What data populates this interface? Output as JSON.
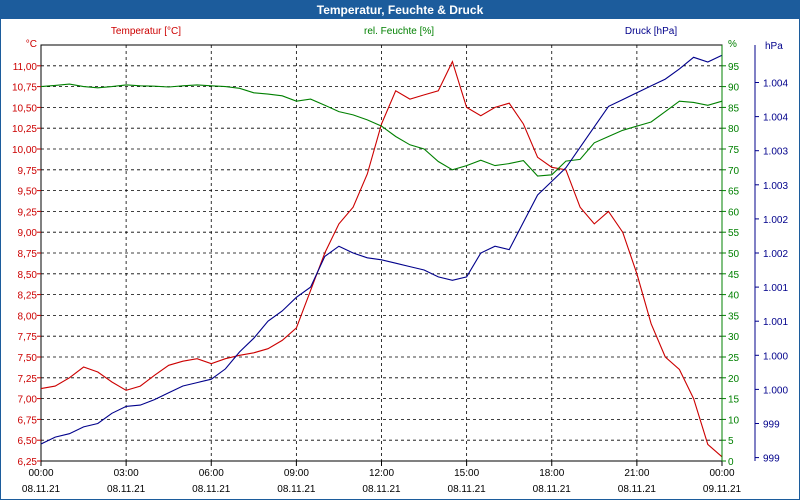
{
  "chart_data": {
    "type": "line",
    "title": "Temperatur, Feuchte & Druck",
    "axes": {
      "temperature": {
        "label": "Temperatur [°C]",
        "unit_label": "°C",
        "color": "#cc0000",
        "ylim": [
          6.25,
          11.25
        ],
        "ticks": [
          "6,25",
          "6,50",
          "6,75",
          "7,00",
          "7,25",
          "7,50",
          "7,75",
          "8,00",
          "8,25",
          "8,50",
          "8,75",
          "9,00",
          "9,25",
          "9,50",
          "9,75",
          "10,00",
          "10,25",
          "10,50",
          "10,75",
          "11,00"
        ]
      },
      "humidity": {
        "label": "rel. Feuchte [%]",
        "unit_label": "%",
        "color": "#008000",
        "ylim": [
          0,
          100
        ],
        "ticks": [
          "0",
          "5",
          "10",
          "15",
          "20",
          "25",
          "30",
          "35",
          "40",
          "45",
          "50",
          "55",
          "60",
          "65",
          "70",
          "75",
          "80",
          "85",
          "90",
          "95"
        ]
      },
      "pressure": {
        "label": "Druck [hPa]",
        "unit_label": "hPa",
        "color": "#00008b",
        "ylim": [
          998.8,
          1004.9
        ],
        "ticks": [
          "999",
          "999",
          "1.000",
          "1.000",
          "1.001",
          "1.001",
          "1.002",
          "1.002",
          "1.003",
          "1.003",
          "1.004",
          "1.004"
        ]
      }
    },
    "x_ticks": [
      {
        "time": "00:00",
        "date": "08.11.21"
      },
      {
        "time": "03:00",
        "date": "08.11.21"
      },
      {
        "time": "06:00",
        "date": "08.11.21"
      },
      {
        "time": "09:00",
        "date": "08.11.21"
      },
      {
        "time": "12:00",
        "date": "08.11.21"
      },
      {
        "time": "15:00",
        "date": "08.11.21"
      },
      {
        "time": "18:00",
        "date": "08.11.21"
      },
      {
        "time": "21:00",
        "date": "08.11.21"
      },
      {
        "time": "00:00",
        "date": "09.11.21"
      }
    ],
    "xlim_hours": [
      0,
      24
    ],
    "series": [
      {
        "name": "Temperatur [°C]",
        "axis": "temperature",
        "x": [
          0,
          0.5,
          1,
          1.5,
          2,
          2.5,
          3,
          3.5,
          4,
          4.5,
          5,
          5.5,
          6,
          6.5,
          7,
          7.5,
          8,
          8.5,
          9,
          9.5,
          10,
          10.5,
          11,
          11.5,
          12,
          12.5,
          13,
          13.5,
          14,
          14.5,
          15,
          15.5,
          16,
          16.5,
          17,
          17.5,
          18,
          18.5,
          19,
          19.5,
          20,
          20.5,
          21,
          21.5,
          22,
          22.5,
          23,
          23.5,
          24
        ],
        "values": [
          7.12,
          7.15,
          7.25,
          7.38,
          7.32,
          7.2,
          7.1,
          7.15,
          7.28,
          7.4,
          7.45,
          7.48,
          7.42,
          7.48,
          7.52,
          7.55,
          7.6,
          7.7,
          7.85,
          8.3,
          8.75,
          9.1,
          9.3,
          9.7,
          10.3,
          10.7,
          10.6,
          10.65,
          10.7,
          11.05,
          10.5,
          10.4,
          10.5,
          10.55,
          10.3,
          9.9,
          9.78,
          9.75,
          9.3,
          9.1,
          9.25,
          9.0,
          8.5,
          7.9,
          7.5,
          7.35,
          7.0,
          6.45,
          6.3
        ]
      },
      {
        "name": "rel. Feuchte [%]",
        "axis": "humidity",
        "x": [
          0,
          0.5,
          1,
          1.5,
          2,
          2.5,
          3,
          3.5,
          4,
          4.5,
          5,
          5.5,
          6,
          6.5,
          7,
          7.5,
          8,
          8.5,
          9,
          9.5,
          10,
          10.5,
          11,
          11.5,
          12,
          12.5,
          13,
          13.5,
          14,
          14.5,
          15,
          15.5,
          16,
          16.5,
          17,
          17.5,
          18,
          18.5,
          19,
          19.5,
          20,
          20.5,
          21,
          21.5,
          22,
          22.5,
          23,
          23.5,
          24
        ],
        "values": [
          90,
          90.3,
          90.6,
          90,
          89.7,
          90,
          90.4,
          90.2,
          90.1,
          89.9,
          90.2,
          90.4,
          90.2,
          90,
          89.6,
          88.5,
          88.2,
          87.8,
          86.5,
          87,
          85.5,
          84,
          83.2,
          82,
          80.5,
          78,
          76,
          75,
          72,
          70,
          71,
          72.3,
          71,
          71.5,
          72.2,
          68.5,
          68.8,
          72.1,
          72.5,
          76.5,
          78,
          79.5,
          80.5,
          81.5,
          84,
          86.5,
          86.2,
          85.5,
          86.5
        ]
      },
      {
        "name": "Druck [hPa]",
        "axis": "pressure",
        "x": [
          0,
          0.5,
          1,
          1.5,
          2,
          2.5,
          3,
          3.5,
          4,
          4.5,
          5,
          5.5,
          6,
          6.5,
          7,
          7.5,
          8,
          8.5,
          9,
          9.5,
          10,
          10.5,
          11,
          11.5,
          12,
          12.5,
          13,
          13.5,
          14,
          14.5,
          15,
          15.5,
          16,
          16.5,
          17,
          17.5,
          18,
          18.5,
          19,
          19.5,
          20,
          20.5,
          21,
          21.5,
          22,
          22.5,
          23,
          23.5,
          24
        ],
        "values": [
          999.05,
          999.15,
          999.2,
          999.3,
          999.35,
          999.5,
          999.6,
          999.62,
          999.7,
          999.8,
          999.9,
          999.95,
          1000.0,
          1000.15,
          1000.4,
          1000.6,
          1000.85,
          1001.0,
          1001.2,
          1001.35,
          1001.8,
          1001.95,
          1001.85,
          1001.78,
          1001.75,
          1001.7,
          1001.65,
          1001.6,
          1001.5,
          1001.45,
          1001.5,
          1001.85,
          1001.95,
          1001.9,
          1002.3,
          1002.7,
          1002.9,
          1003.1,
          1003.4,
          1003.7,
          1004.0,
          1004.1,
          1004.2,
          1004.3,
          1004.4,
          1004.55,
          1004.72,
          1004.65,
          1004.75
        ]
      }
    ]
  }
}
